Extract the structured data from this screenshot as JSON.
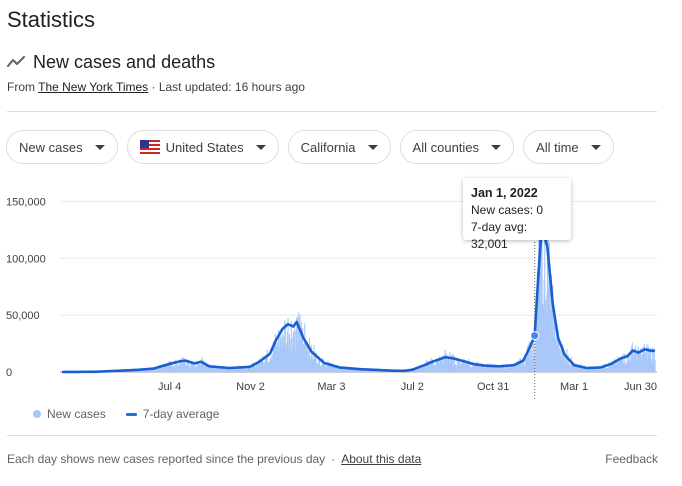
{
  "page": {
    "title": "Statistics"
  },
  "section": {
    "title": "New cases and deaths",
    "icon": "trending-line-icon",
    "source_prefix": "From ",
    "source_link": "The New York Times",
    "updated": " · Last updated: 16 hours ago"
  },
  "filters": [
    {
      "label": "New cases"
    },
    {
      "label": "United States",
      "icon": "us-flag-icon"
    },
    {
      "label": "California"
    },
    {
      "label": "All counties"
    },
    {
      "label": "All time"
    }
  ],
  "tooltip": {
    "date": "Jan 1, 2022",
    "new_cases": "New cases: 0",
    "avg": "7-day avg: 32,001"
  },
  "legend": {
    "bars": "New cases",
    "line": "7-day average"
  },
  "footer": {
    "note": "Each day shows new cases reported since the previous day",
    "separator": "·",
    "about": "About this data",
    "feedback": "Feedback"
  },
  "chart_data": {
    "type": "bar",
    "title": "",
    "y_ticks": [
      0,
      50000,
      100000,
      150000
    ],
    "y_tick_labels": [
      "0",
      "50,000",
      "100,000",
      "150,000"
    ],
    "ylim": [
      0,
      160000
    ],
    "x_range": [
      "2020-01-25",
      "2022-06-30"
    ],
    "x_ticks": [
      {
        "date": "2020-07-04",
        "label": "Jul 4"
      },
      {
        "date": "2020-11-02",
        "label": "Nov 2"
      },
      {
        "date": "2021-03-03",
        "label": "Mar 3"
      },
      {
        "date": "2021-07-02",
        "label": "Jul 2"
      },
      {
        "date": "2021-10-31",
        "label": "Oct 31"
      },
      {
        "date": "2022-03-01",
        "label": "Mar 1"
      },
      {
        "date": "2022-06-30",
        "label": "Jun 30"
      }
    ],
    "highlight": {
      "date": "2022-01-01",
      "new_cases": 0,
      "avg": 32001
    },
    "series": [
      {
        "name": "7-day average",
        "points": [
          [
            "2020-01-25",
            0
          ],
          [
            "2020-03-15",
            200
          ],
          [
            "2020-04-15",
            1000
          ],
          [
            "2020-05-15",
            1800
          ],
          [
            "2020-06-10",
            3000
          ],
          [
            "2020-06-30",
            6500
          ],
          [
            "2020-07-20",
            9500
          ],
          [
            "2020-07-28",
            10000
          ],
          [
            "2020-08-10",
            7500
          ],
          [
            "2020-08-20",
            9000
          ],
          [
            "2020-09-01",
            5000
          ],
          [
            "2020-10-01",
            3500
          ],
          [
            "2020-11-01",
            4500
          ],
          [
            "2020-11-15",
            9000
          ],
          [
            "2020-12-01",
            16000
          ],
          [
            "2020-12-10",
            28000
          ],
          [
            "2020-12-20",
            38000
          ],
          [
            "2020-12-28",
            42000
          ],
          [
            "2021-01-05",
            40000
          ],
          [
            "2021-01-10",
            44000
          ],
          [
            "2021-01-20",
            30000
          ],
          [
            "2021-02-01",
            18000
          ],
          [
            "2021-02-20",
            8000
          ],
          [
            "2021-03-15",
            4000
          ],
          [
            "2021-04-15",
            2500
          ],
          [
            "2021-06-01",
            1200
          ],
          [
            "2021-06-20",
            1000
          ],
          [
            "2021-07-02",
            2000
          ],
          [
            "2021-07-20",
            6000
          ],
          [
            "2021-08-01",
            9000
          ],
          [
            "2021-08-20",
            13000
          ],
          [
            "2021-09-01",
            12000
          ],
          [
            "2021-09-20",
            9000
          ],
          [
            "2021-10-01",
            7000
          ],
          [
            "2021-10-20",
            5500
          ],
          [
            "2021-11-10",
            5000
          ],
          [
            "2021-12-01",
            6000
          ],
          [
            "2021-12-15",
            10000
          ],
          [
            "2021-12-25",
            22000
          ],
          [
            "2022-01-01",
            32001
          ],
          [
            "2022-01-06",
            80000
          ],
          [
            "2022-01-10",
            115000
          ],
          [
            "2022-01-13",
            125000
          ],
          [
            "2022-01-20",
            110000
          ],
          [
            "2022-01-28",
            60000
          ],
          [
            "2022-02-05",
            30000
          ],
          [
            "2022-02-15",
            15000
          ],
          [
            "2022-03-01",
            6000
          ],
          [
            "2022-03-20",
            3500
          ],
          [
            "2022-04-10",
            4000
          ],
          [
            "2022-04-25",
            7000
          ],
          [
            "2022-05-10",
            12000
          ],
          [
            "2022-05-20",
            14000
          ],
          [
            "2022-05-28",
            19000
          ],
          [
            "2022-06-05",
            17000
          ],
          [
            "2022-06-15",
            20000
          ],
          [
            "2022-06-25",
            18500
          ],
          [
            "2022-06-30",
            19000
          ]
        ]
      }
    ]
  }
}
